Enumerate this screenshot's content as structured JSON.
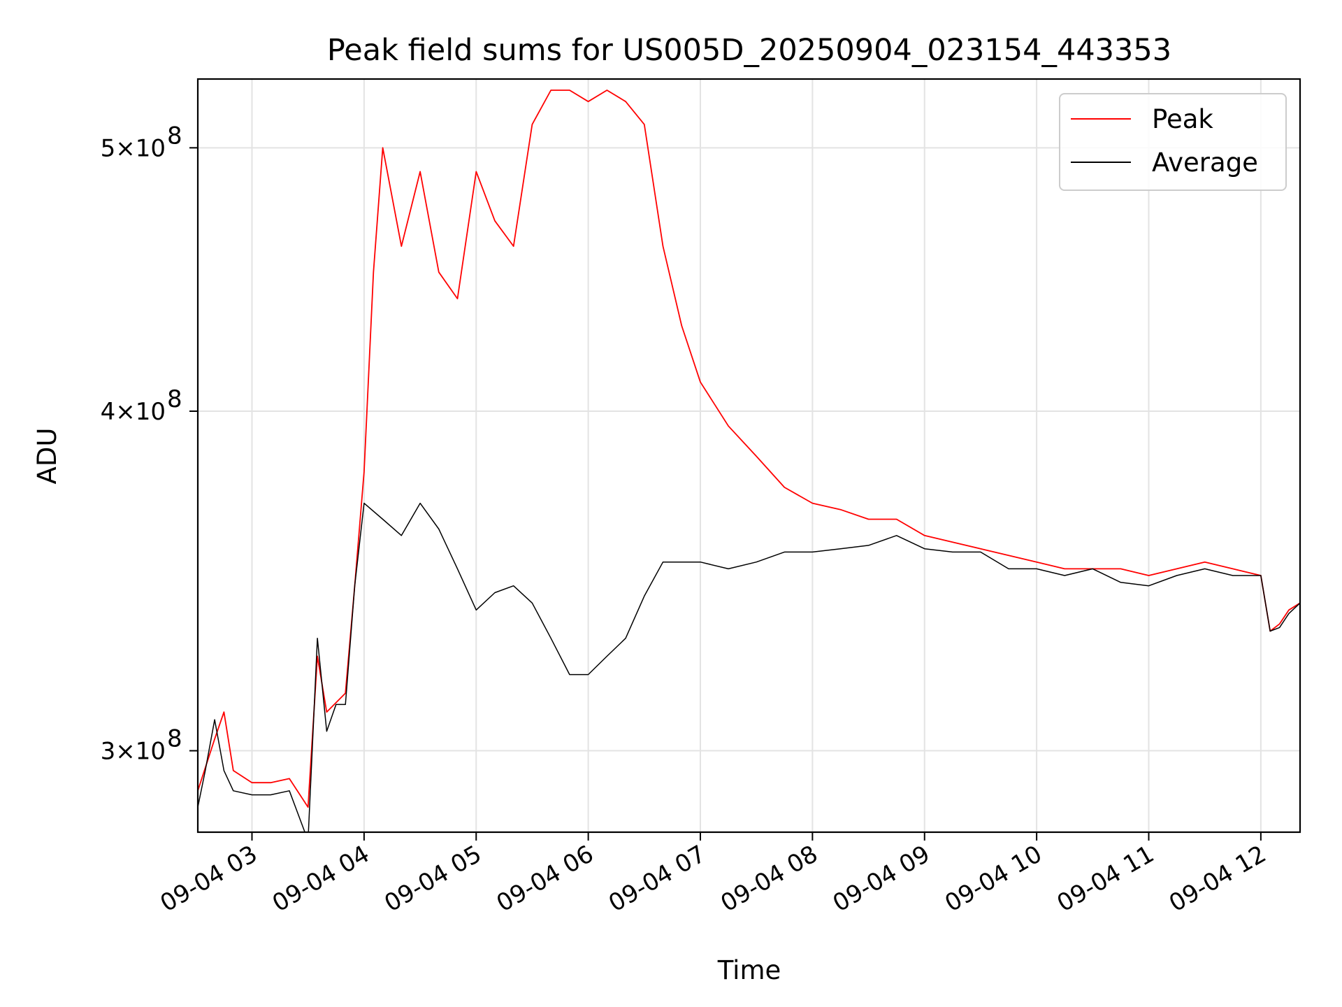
{
  "chart_data": {
    "type": "line",
    "title": "Peak field sums for US005D_20250904_023154_443353",
    "xlabel": "Time",
    "ylabel": "ADU",
    "x_axis": {
      "scale": "time",
      "range": [
        "2025-09-04 02:31",
        "2025-09-04 12:21"
      ],
      "ticks": [
        "09-04 03",
        "09-04 04",
        "09-04 05",
        "09-04 06",
        "09-04 07",
        "09-04 08",
        "09-04 09",
        "09-04 10",
        "09-04 11",
        "09-04 12"
      ],
      "tick_times": [
        "03:00",
        "04:00",
        "05:00",
        "06:00",
        "07:00",
        "08:00",
        "09:00",
        "10:00",
        "11:00",
        "12:00"
      ]
    },
    "y_axis": {
      "scale": "log",
      "range": [
        280000000.0,
        530000000.0
      ],
      "ticks": [
        300000000.0,
        400000000.0,
        500000000.0
      ],
      "tick_labels": [
        "3×10",
        "4×10",
        "5×10"
      ],
      "tick_exponent": "8"
    },
    "grid": true,
    "legend": {
      "placement": "top-right"
    },
    "series": [
      {
        "name": "Peak",
        "color": "#ff0000",
        "x": [
          "02:31",
          "02:40",
          "02:45",
          "02:50",
          "03:00",
          "03:10",
          "03:20",
          "03:30",
          "03:35",
          "03:40",
          "03:50",
          "03:55",
          "04:00",
          "04:05",
          "04:10",
          "04:20",
          "04:30",
          "04:40",
          "04:50",
          "05:00",
          "05:10",
          "05:20",
          "05:30",
          "05:40",
          "05:50",
          "06:00",
          "06:10",
          "06:20",
          "06:30",
          "06:40",
          "06:50",
          "07:00",
          "07:15",
          "07:30",
          "07:45",
          "08:00",
          "08:15",
          "08:30",
          "08:45",
          "09:00",
          "09:15",
          "09:30",
          "09:45",
          "10:00",
          "10:15",
          "10:30",
          "10:45",
          "11:00",
          "11:15",
          "11:30",
          "11:45",
          "12:00",
          "12:05",
          "12:10",
          "12:15",
          "12:21"
        ],
        "y": [
          290000000.0,
          303000000.0,
          310000000.0,
          295000000.0,
          292000000.0,
          292000000.0,
          293000000.0,
          286000000.0,
          325000000.0,
          310000000.0,
          315000000.0,
          345000000.0,
          380000000.0,
          450000000.0,
          500000000.0,
          460000000.0,
          490000000.0,
          450000000.0,
          440000000.0,
          490000000.0,
          470000000.0,
          460000000.0,
          510000000.0,
          525000000.0,
          525000000.0,
          520000000.0,
          525000000.0,
          520000000.0,
          510000000.0,
          460000000.0,
          430000000.0,
          410000000.0,
          395000000.0,
          385000000.0,
          375000000.0,
          370000000.0,
          368000000.0,
          365000000.0,
          365000000.0,
          360000000.0,
          358000000.0,
          356000000.0,
          354000000.0,
          352000000.0,
          350000000.0,
          350000000.0,
          350000000.0,
          348000000.0,
          350000000.0,
          352000000.0,
          350000000.0,
          348000000.0,
          332000000.0,
          334000000.0,
          338000000.0,
          340000000.0
        ]
      },
      {
        "name": "Average",
        "color": "#000000",
        "x": [
          "02:31",
          "02:35",
          "02:40",
          "02:45",
          "02:50",
          "03:00",
          "03:10",
          "03:20",
          "03:30",
          "03:35",
          "03:40",
          "03:45",
          "03:50",
          "03:55",
          "04:00",
          "04:10",
          "04:20",
          "04:30",
          "04:40",
          "04:50",
          "05:00",
          "05:10",
          "05:20",
          "05:30",
          "05:40",
          "05:50",
          "06:00",
          "06:10",
          "06:20",
          "06:30",
          "06:40",
          "06:50",
          "07:00",
          "07:15",
          "07:30",
          "07:45",
          "08:00",
          "08:15",
          "08:30",
          "08:45",
          "09:00",
          "09:15",
          "09:30",
          "09:45",
          "10:00",
          "10:15",
          "10:30",
          "10:45",
          "11:00",
          "11:15",
          "11:30",
          "11:45",
          "12:00",
          "12:05",
          "12:10",
          "12:15",
          "12:21"
        ],
        "y": [
          286000000.0,
          295000000.0,
          308000000.0,
          295000000.0,
          290000000.0,
          289000000.0,
          289000000.0,
          290000000.0,
          278000000.0,
          330000000.0,
          305000000.0,
          312000000.0,
          312000000.0,
          345000000.0,
          370000000.0,
          365000000.0,
          360000000.0,
          370000000.0,
          362000000.0,
          350000000.0,
          338000000.0,
          343000000.0,
          345000000.0,
          340000000.0,
          330000000.0,
          320000000.0,
          320000000.0,
          325000000.0,
          330000000.0,
          342000000.0,
          352000000.0,
          352000000.0,
          352000000.0,
          350000000.0,
          352000000.0,
          355000000.0,
          355000000.0,
          356000000.0,
          357000000.0,
          360000000.0,
          356000000.0,
          355000000.0,
          355000000.0,
          350000000.0,
          350000000.0,
          348000000.0,
          350000000.0,
          346000000.0,
          345000000.0,
          348000000.0,
          350000000.0,
          348000000.0,
          348000000.0,
          332000000.0,
          333000000.0,
          337000000.0,
          340000000.0
        ]
      }
    ]
  }
}
